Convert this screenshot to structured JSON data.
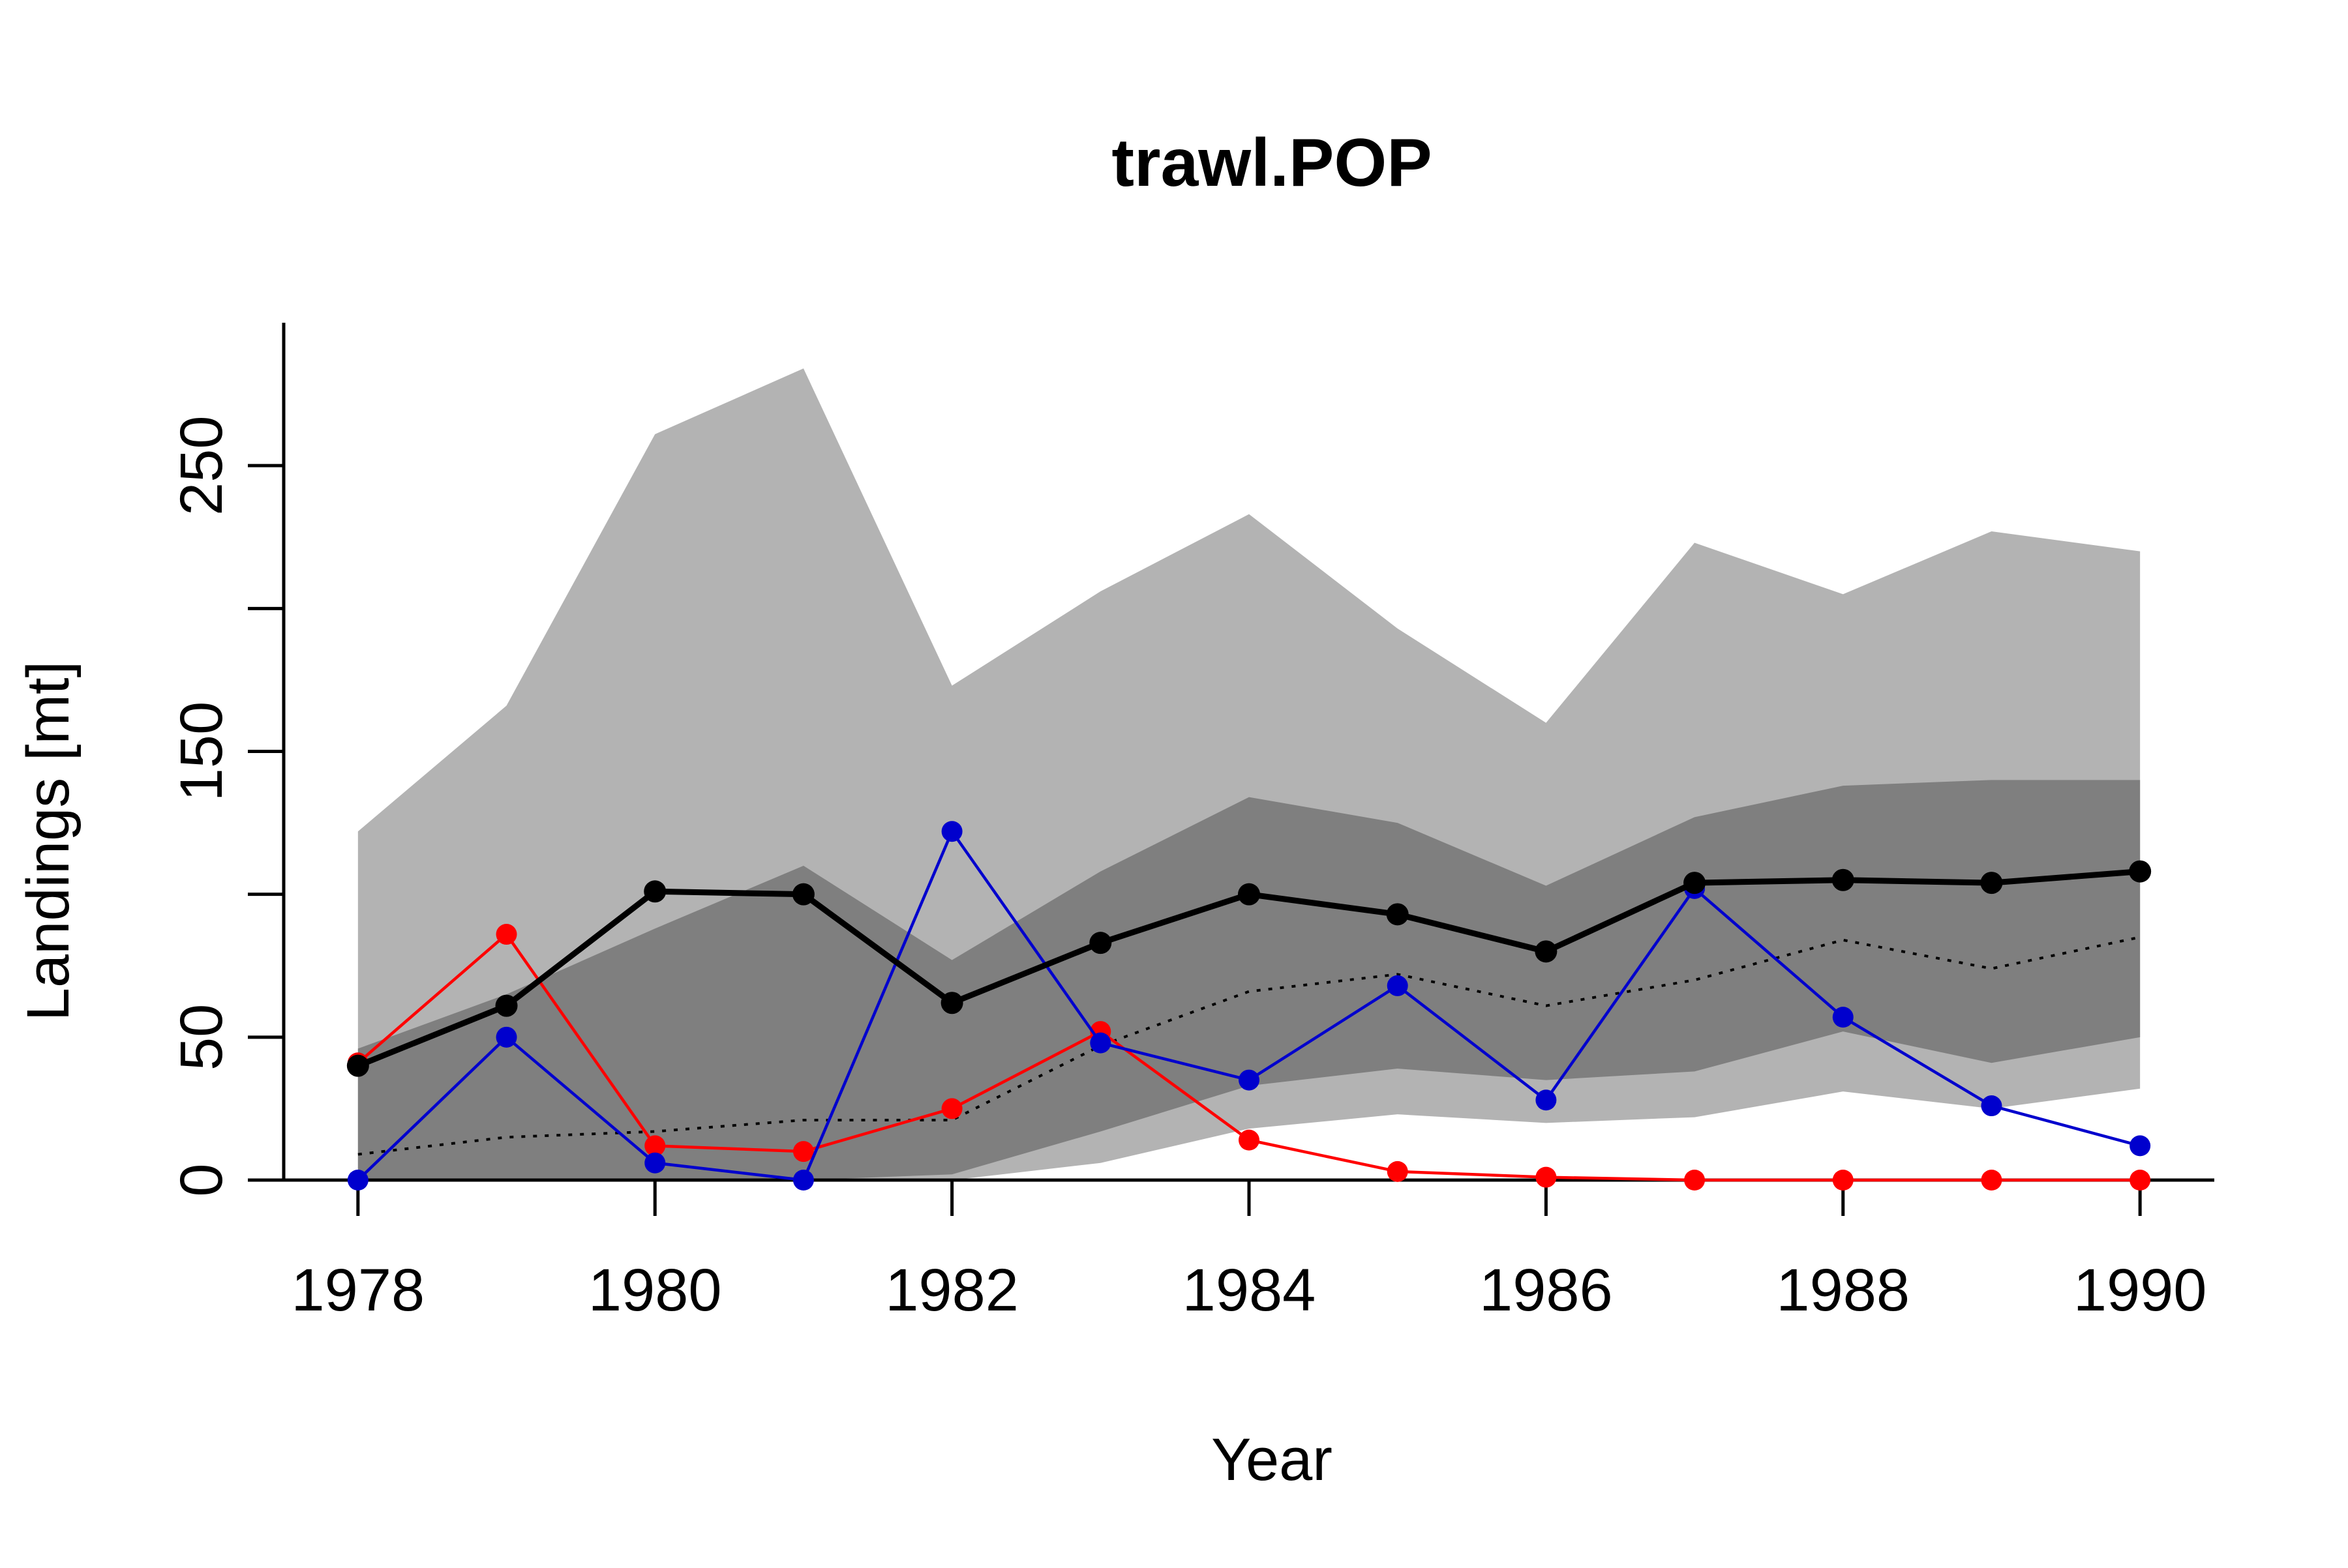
{
  "chart_data": {
    "type": "line",
    "title": "trawl.POP",
    "xlabel": "Year",
    "ylabel": "Landings [mt]",
    "xlim": [
      1977.5,
      1990.5
    ],
    "ylim": [
      0,
      300
    ],
    "x_ticks": [
      1978,
      1980,
      1982,
      1984,
      1986,
      1988,
      1990
    ],
    "x_tick_labels": [
      "1978",
      "1980",
      "1982",
      "1984",
      "1986",
      "1988",
      "1990"
    ],
    "y_ticks": [
      0,
      50,
      100,
      150,
      200,
      250
    ],
    "y_tick_labels": [
      "0",
      "50",
      "",
      "150",
      "",
      "250"
    ],
    "grid": false,
    "legend": "none",
    "x": [
      1978,
      1979,
      1980,
      1981,
      1982,
      1983,
      1984,
      1985,
      1986,
      1987,
      1988,
      1989,
      1990
    ],
    "bands": [
      {
        "color": "#b3b3b3",
        "lower": [
          0,
          0,
          0,
          0,
          0,
          6,
          18,
          23,
          20,
          22,
          31,
          25,
          32
        ],
        "upper": [
          122,
          166,
          261,
          284,
          173,
          206,
          233,
          193,
          160,
          223,
          205,
          227,
          220
        ]
      },
      {
        "color": "#7f7f7f",
        "lower": [
          0,
          0,
          0,
          0,
          2,
          17,
          33,
          39,
          35,
          38,
          52,
          41,
          50
        ],
        "upper": [
          46,
          65,
          88,
          110,
          77,
          108,
          134,
          125,
          103,
          127,
          138,
          140,
          140
        ]
      }
    ],
    "series": [
      {
        "color": "#000000",
        "style": "solid-thick-points",
        "values": [
          40,
          61,
          101,
          100,
          62,
          83,
          100,
          93,
          80,
          104,
          105,
          104,
          108
        ]
      },
      {
        "color": "#000000",
        "style": "dotted",
        "values": [
          9,
          15,
          17,
          21,
          21,
          47,
          66,
          72,
          61,
          70,
          84,
          74,
          85
        ]
      },
      {
        "color": "#ff0000",
        "style": "solid-points",
        "values": [
          41,
          86,
          12,
          10,
          25,
          52,
          14,
          3,
          1,
          0,
          0,
          0,
          0
        ]
      },
      {
        "color": "#0000cd",
        "style": "solid-points",
        "values": [
          0,
          50,
          6,
          0,
          122,
          48,
          35,
          68,
          28,
          102,
          57,
          26,
          12
        ]
      }
    ]
  }
}
